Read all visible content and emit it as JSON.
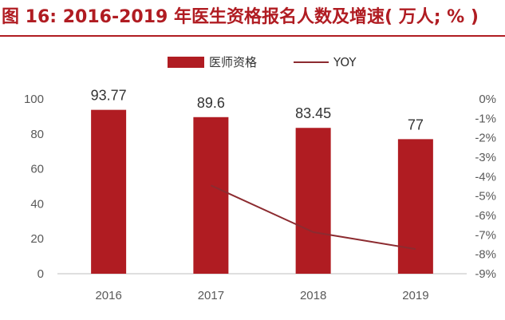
{
  "chart_data": {
    "type": "bar",
    "title": "图 16: 2016-2019 年医生资格报名人数及增速( 万人; % )",
    "categories": [
      "2016",
      "2017",
      "2018",
      "2019"
    ],
    "series": [
      {
        "name": "医师资格",
        "type": "bar",
        "axis": "left",
        "values": [
          93.77,
          89.6,
          83.45,
          77
        ]
      },
      {
        "name": "YOY",
        "type": "line",
        "axis": "right",
        "values": [
          null,
          -4.45,
          -6.86,
          -7.73
        ]
      }
    ],
    "ylim": [
      0,
      100
    ],
    "y_ticks": [
      "0",
      "20",
      "40",
      "60",
      "80",
      "100"
    ],
    "y2lim": [
      -9,
      0
    ],
    "y2_ticks": [
      "0%",
      "-1%",
      "-2%",
      "-3%",
      "-4%",
      "-5%",
      "-6%",
      "-7%",
      "-8%",
      "-9%"
    ],
    "data_labels": [
      "93.77",
      "89.6",
      "83.45",
      "77"
    ],
    "legend": {
      "placement": "top-center",
      "items": [
        "医师资格",
        "YOY"
      ]
    },
    "grid": false,
    "colors": {
      "bar": "#b01c22",
      "line": "#8c2b30",
      "title": "#b01c22"
    }
  }
}
